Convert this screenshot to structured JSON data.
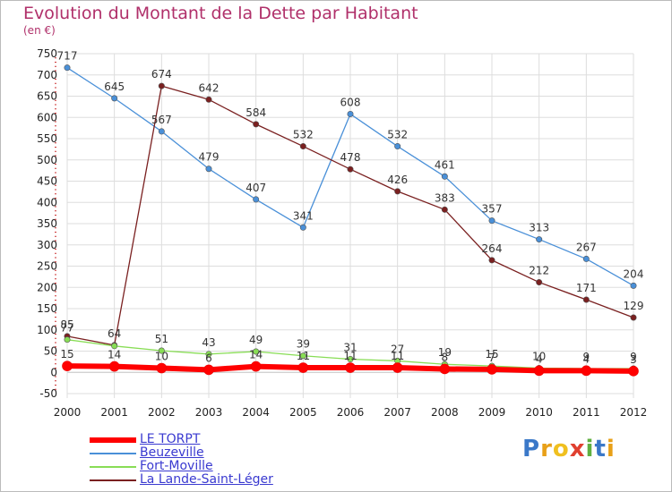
{
  "title": "Evolution du Montant de la Dette par Habitant",
  "subtitle": "(en €)",
  "logo": {
    "letters": [
      "P",
      "r",
      "o",
      "x",
      "i",
      "t",
      "i"
    ],
    "colors": [
      "#3a78c8",
      "#e8a018",
      "#f0c020",
      "#e04030",
      "#60b040",
      "#3a78c8",
      "#e8a018"
    ]
  },
  "chart_data": {
    "type": "line",
    "title": "Evolution du Montant de la Dette par Habitant",
    "ylabel": "(en €)",
    "x": [
      "2000",
      "2001",
      "2002",
      "2003",
      "2004",
      "2005",
      "2006",
      "2007",
      "2008",
      "2009",
      "2010",
      "2011",
      "2012"
    ],
    "ylim": [
      -50,
      750
    ],
    "yticks": [
      -50,
      0,
      50,
      100,
      150,
      200,
      250,
      300,
      350,
      400,
      450,
      500,
      550,
      600,
      650,
      700,
      750
    ],
    "grid": true,
    "legend_position": "bottom-left",
    "series": [
      {
        "name": "LE TORPT",
        "color": "#ff0000",
        "values": [
          15,
          14,
          10,
          6,
          14,
          11,
          11,
          11,
          8,
          7,
          4,
          4,
          3
        ],
        "labels": [
          "15",
          "14",
          "10",
          "6",
          "14",
          "11",
          "11",
          "11",
          "8",
          "7",
          "4",
          "4",
          "3"
        ]
      },
      {
        "name": "Beuzeville",
        "color": "#4a90d8",
        "values": [
          717,
          645,
          567,
          479,
          407,
          341,
          608,
          532,
          461,
          357,
          313,
          267,
          204
        ],
        "labels": [
          "717",
          "645",
          "567",
          "479",
          "407",
          "341",
          "608",
          "532",
          "461",
          "357",
          "313",
          "267",
          "204"
        ]
      },
      {
        "name": "Fort-Moville",
        "color": "#88dd55",
        "values": [
          77,
          62,
          51,
          43,
          49,
          39,
          31,
          27,
          19,
          15,
          10,
          9,
          9
        ],
        "labels": [
          "77",
          "",
          "51",
          "43",
          "49",
          "39",
          "31",
          "27",
          "19",
          "15",
          "10",
          "9",
          "9"
        ]
      },
      {
        "name": "La Lande-Saint-Léger",
        "color": "#7a2020",
        "values": [
          85,
          64,
          674,
          642,
          584,
          532,
          478,
          426,
          383,
          264,
          212,
          171,
          129
        ],
        "labels": [
          "85",
          "64",
          "674",
          "642",
          "584",
          "532",
          "478",
          "426",
          "383",
          "264",
          "212",
          "171",
          "129"
        ]
      }
    ]
  }
}
